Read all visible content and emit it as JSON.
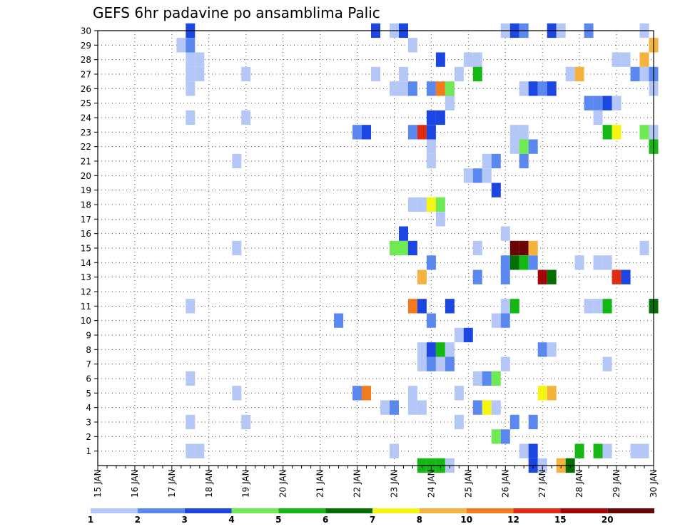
{
  "chart_data": {
    "type": "heatmap",
    "title": "GEFS 6hr padavine po ansamblima Palic",
    "x_tick_labels": [
      "15 JAN",
      "16 JAN",
      "17 JAN",
      "18 JAN",
      "19 JAN",
      "20 JAN",
      "21 JAN",
      "22 JAN",
      "23 JAN",
      "24 JAN",
      "25 JAN",
      "26 JAN",
      "27 JAN",
      "28 JAN",
      "29 JAN",
      "30 JAN"
    ],
    "y_tick_labels": [
      "1",
      "2",
      "3",
      "4",
      "5",
      "6",
      "7",
      "8",
      "9",
      "10",
      "11",
      "12",
      "13",
      "14",
      "15",
      "16",
      "17",
      "18",
      "19",
      "20",
      "21",
      "22",
      "23",
      "24",
      "25",
      "26",
      "27",
      "28",
      "29",
      "30"
    ],
    "x_range": [
      "15 JAN 00Z",
      "30 JAN 00Z"
    ],
    "time_step": "6hr",
    "y_range": [
      0,
      30
    ],
    "grid": "dotted",
    "legend": {
      "position": "bottom",
      "labels": [
        "1",
        "2",
        "3",
        "4",
        "5",
        "6",
        "7",
        "8",
        "10",
        "12",
        "15",
        "20"
      ],
      "colors": [
        "#b4c7f7",
        "#5b88ef",
        "#1c46e2",
        "#6fea55",
        "#14b814",
        "#036e03",
        "#f5f514",
        "#f5b33d",
        "#f47a1e",
        "#e02c14",
        "#a40404",
        "#6b0404"
      ]
    },
    "cells": [
      {
        "date": "17 JAN 12Z",
        "member": 30,
        "bin": 3
      },
      {
        "date": "17 JAN 06Z",
        "member": 29,
        "bin": 1
      },
      {
        "date": "17 JAN 12Z",
        "member": 29,
        "bin": 2
      },
      {
        "date": "17 JAN 12Z",
        "member": 28,
        "bin": 1
      },
      {
        "date": "17 JAN 18Z",
        "member": 28,
        "bin": 1
      },
      {
        "date": "17 JAN 12Z",
        "member": 27,
        "bin": 1
      },
      {
        "date": "17 JAN 18Z",
        "member": 27,
        "bin": 1
      },
      {
        "date": "17 JAN 12Z",
        "member": 26,
        "bin": 1
      },
      {
        "date": "17 JAN 12Z",
        "member": 24,
        "bin": 1
      },
      {
        "date": "17 JAN 12Z",
        "member": 11,
        "bin": 1
      },
      {
        "date": "17 JAN 12Z",
        "member": 6,
        "bin": 1
      },
      {
        "date": "17 JAN 12Z",
        "member": 3,
        "bin": 1
      },
      {
        "date": "17 JAN 12Z",
        "member": 1,
        "bin": 1
      },
      {
        "date": "17 JAN 18Z",
        "member": 1,
        "bin": 1
      },
      {
        "date": "19 JAN 00Z",
        "member": 27,
        "bin": 1
      },
      {
        "date": "19 JAN 00Z",
        "member": 24,
        "bin": 1
      },
      {
        "date": "19 JAN 00Z",
        "member": 3,
        "bin": 1
      },
      {
        "date": "18 JAN 18Z",
        "member": 21,
        "bin": 1
      },
      {
        "date": "18 JAN 18Z",
        "member": 15,
        "bin": 1
      },
      {
        "date": "18 JAN 18Z",
        "member": 5,
        "bin": 1
      },
      {
        "date": "21 JAN 12Z",
        "member": 10,
        "bin": 2
      },
      {
        "date": "22 JAN 00Z",
        "member": 23,
        "bin": 2
      },
      {
        "date": "22 JAN 06Z",
        "member": 23,
        "bin": 3
      },
      {
        "date": "22 JAN 00Z",
        "member": 5,
        "bin": 2
      },
      {
        "date": "22 JAN 06Z",
        "member": 5,
        "bin": 9
      },
      {
        "date": "22 JAN 12Z",
        "member": 27,
        "bin": 1
      },
      {
        "date": "22 JAN 18Z",
        "member": 4,
        "bin": 1
      },
      {
        "date": "23 JAN 00Z",
        "member": 4,
        "bin": 2
      },
      {
        "date": "22 JAN 12Z",
        "member": 30,
        "bin": 3
      },
      {
        "date": "23 JAN 00Z",
        "member": 30,
        "bin": 1
      },
      {
        "date": "23 JAN 06Z",
        "member": 30,
        "bin": 3
      },
      {
        "date": "23 JAN 00Z",
        "member": 26,
        "bin": 1
      },
      {
        "date": "23 JAN 06Z",
        "member": 26,
        "bin": 1
      },
      {
        "date": "23 JAN 12Z",
        "member": 26,
        "bin": 2
      },
      {
        "date": "23 JAN 06Z",
        "member": 27,
        "bin": 1
      },
      {
        "date": "23 JAN 12Z",
        "member": 29,
        "bin": 1
      },
      {
        "date": "23 JAN 00Z",
        "member": 15,
        "bin": 4
      },
      {
        "date": "23 JAN 06Z",
        "member": 15,
        "bin": 4
      },
      {
        "date": "23 JAN 06Z",
        "member": 16,
        "bin": 3
      },
      {
        "date": "23 JAN 12Z",
        "member": 15,
        "bin": 3
      },
      {
        "date": "23 JAN 12Z",
        "member": 11,
        "bin": 9
      },
      {
        "date": "23 JAN 18Z",
        "member": 11,
        "bin": 3
      },
      {
        "date": "23 JAN 00Z",
        "member": 1,
        "bin": 1
      },
      {
        "date": "23 JAN 12Z",
        "member": 23,
        "bin": 2
      },
      {
        "date": "23 JAN 18Z",
        "member": 23,
        "bin": 10
      },
      {
        "date": "24 JAN 00Z",
        "member": 23,
        "bin": 3
      },
      {
        "date": "24 JAN 00Z",
        "member": 24,
        "bin": 3
      },
      {
        "date": "24 JAN 06Z",
        "member": 24,
        "bin": 3
      },
      {
        "date": "24 JAN 00Z",
        "member": 22,
        "bin": 1
      },
      {
        "date": "24 JAN 00Z",
        "member": 21,
        "bin": 1
      },
      {
        "date": "23 JAN 12Z",
        "member": 18,
        "bin": 1
      },
      {
        "date": "23 JAN 18Z",
        "member": 18,
        "bin": 1
      },
      {
        "date": "24 JAN 00Z",
        "member": 18,
        "bin": 7
      },
      {
        "date": "24 JAN 06Z",
        "member": 18,
        "bin": 4
      },
      {
        "date": "23 JAN 18Z",
        "member": 13,
        "bin": 8
      },
      {
        "date": "24 JAN 00Z",
        "member": 14,
        "bin": 2
      },
      {
        "date": "24 JAN 00Z",
        "member": 10,
        "bin": 2
      },
      {
        "date": "23 JAN 18Z",
        "member": 8,
        "bin": 1
      },
      {
        "date": "24 JAN 00Z",
        "member": 8,
        "bin": 3
      },
      {
        "date": "24 JAN 06Z",
        "member": 8,
        "bin": 5
      },
      {
        "date": "24 JAN 12Z",
        "member": 8,
        "bin": 1
      },
      {
        "date": "23 JAN 18Z",
        "member": 7,
        "bin": 1
      },
      {
        "date": "24 JAN 00Z",
        "member": 7,
        "bin": 2
      },
      {
        "date": "24 JAN 06Z",
        "member": 7,
        "bin": 1
      },
      {
        "date": "24 JAN 12Z",
        "member": 7,
        "bin": 2
      },
      {
        "date": "24 JAN 18Z",
        "member": 9,
        "bin": 1
      },
      {
        "date": "25 JAN 00Z",
        "member": 9,
        "bin": 3
      },
      {
        "date": "23 JAN 12Z",
        "member": 4,
        "bin": 1
      },
      {
        "date": "23 JAN 18Z",
        "member": 4,
        "bin": 1
      },
      {
        "date": "23 JAN 12Z",
        "member": 5,
        "bin": 1
      },
      {
        "date": "23 JAN 18Z",
        "member": 0,
        "bin": 5
      },
      {
        "date": "24 JAN 00Z",
        "member": 0,
        "bin": 5
      },
      {
        "date": "24 JAN 06Z",
        "member": 0,
        "bin": 5
      },
      {
        "date": "24 JAN 12Z",
        "member": 0,
        "bin": 1
      },
      {
        "date": "24 JAN 06Z",
        "member": 28,
        "bin": 3
      },
      {
        "date": "24 JAN 00Z",
        "member": 26,
        "bin": 2
      },
      {
        "date": "24 JAN 06Z",
        "member": 26,
        "bin": 9
      },
      {
        "date": "24 JAN 12Z",
        "member": 26,
        "bin": 4
      },
      {
        "date": "24 JAN 12Z",
        "member": 25,
        "bin": 1
      },
      {
        "date": "24 JAN 18Z",
        "member": 27,
        "bin": 1
      },
      {
        "date": "24 JAN 06Z",
        "member": 17,
        "bin": 1
      },
      {
        "date": "24 JAN 12Z",
        "member": 11,
        "bin": 3
      },
      {
        "date": "24 JAN 18Z",
        "member": 5,
        "bin": 1
      },
      {
        "date": "24 JAN 18Z",
        "member": 3,
        "bin": 1
      },
      {
        "date": "25 JAN 00Z",
        "member": 28,
        "bin": 1
      },
      {
        "date": "25 JAN 06Z",
        "member": 28,
        "bin": 1
      },
      {
        "date": "25 JAN 06Z",
        "member": 27,
        "bin": 5
      },
      {
        "date": "25 JAN 00Z",
        "member": 20,
        "bin": 1
      },
      {
        "date": "25 JAN 06Z",
        "member": 20,
        "bin": 2
      },
      {
        "date": "25 JAN 06Z",
        "member": 15,
        "bin": 1
      },
      {
        "date": "25 JAN 06Z",
        "member": 13,
        "bin": 2
      },
      {
        "date": "25 JAN 06Z",
        "member": 6,
        "bin": 1
      },
      {
        "date": "25 JAN 12Z",
        "member": 6,
        "bin": 2
      },
      {
        "date": "25 JAN 18Z",
        "member": 6,
        "bin": 4
      },
      {
        "date": "25 JAN 06Z",
        "member": 4,
        "bin": 2
      },
      {
        "date": "25 JAN 12Z",
        "member": 4,
        "bin": 7
      },
      {
        "date": "25 JAN 18Z",
        "member": 4,
        "bin": 1
      },
      {
        "date": "25 JAN 12Z",
        "member": 21,
        "bin": 1
      },
      {
        "date": "25 JAN 18Z",
        "member": 21,
        "bin": 2
      },
      {
        "date": "25 JAN 12Z",
        "member": 20,
        "bin": 1
      },
      {
        "date": "25 JAN 18Z",
        "member": 19,
        "bin": 3
      },
      {
        "date": "25 JAN 18Z",
        "member": 10,
        "bin": 1
      },
      {
        "date": "26 JAN 00Z",
        "member": 10,
        "bin": 2
      },
      {
        "date": "26 JAN 00Z",
        "member": 11,
        "bin": 1
      },
      {
        "date": "26 JAN 06Z",
        "member": 11,
        "bin": 5
      },
      {
        "date": "26 JAN 00Z",
        "member": 7,
        "bin": 1
      },
      {
        "date": "25 JAN 18Z",
        "member": 2,
        "bin": 4
      },
      {
        "date": "26 JAN 00Z",
        "member": 2,
        "bin": 2
      },
      {
        "date": "26 JAN 00Z",
        "member": 16,
        "bin": 1
      },
      {
        "date": "26 JAN 00Z",
        "member": 14,
        "bin": 2
      },
      {
        "date": "26 JAN 00Z",
        "member": 13,
        "bin": 2
      },
      {
        "date": "26 JAN 06Z",
        "member": 14,
        "bin": 6
      },
      {
        "date": "26 JAN 12Z",
        "member": 14,
        "bin": 5
      },
      {
        "date": "26 JAN 18Z",
        "member": 14,
        "bin": 2
      },
      {
        "date": "26 JAN 06Z",
        "member": 15,
        "bin": 12
      },
      {
        "date": "26 JAN 12Z",
        "member": 15,
        "bin": 12
      },
      {
        "date": "26 JAN 18Z",
        "member": 15,
        "bin": 8
      },
      {
        "date": "26 JAN 00Z",
        "member": 30,
        "bin": 1
      },
      {
        "date": "26 JAN 06Z",
        "member": 30,
        "bin": 3
      },
      {
        "date": "26 JAN 12Z",
        "member": 30,
        "bin": 2
      },
      {
        "date": "26 JAN 12Z",
        "member": 26,
        "bin": 1
      },
      {
        "date": "26 JAN 18Z",
        "member": 26,
        "bin": 3
      },
      {
        "date": "26 JAN 06Z",
        "member": 23,
        "bin": 1
      },
      {
        "date": "26 JAN 12Z",
        "member": 23,
        "bin": 1
      },
      {
        "date": "26 JAN 06Z",
        "member": 22,
        "bin": 1
      },
      {
        "date": "26 JAN 12Z",
        "member": 22,
        "bin": 4
      },
      {
        "date": "26 JAN 18Z",
        "member": 22,
        "bin": 2
      },
      {
        "date": "26 JAN 12Z",
        "member": 21,
        "bin": 2
      },
      {
        "date": "26 JAN 06Z",
        "member": 3,
        "bin": 2
      },
      {
        "date": "26 JAN 18Z",
        "member": 3,
        "bin": 2
      },
      {
        "date": "26 JAN 12Z",
        "member": 1,
        "bin": 1
      },
      {
        "date": "26 JAN 18Z",
        "member": 1,
        "bin": 3
      },
      {
        "date": "26 JAN 18Z",
        "member": 0,
        "bin": 3
      },
      {
        "date": "27 JAN 00Z",
        "member": 0,
        "bin": 1
      },
      {
        "date": "27 JAN 00Z",
        "member": 26,
        "bin": 2
      },
      {
        "date": "27 JAN 06Z",
        "member": 26,
        "bin": 3
      },
      {
        "date": "27 JAN 06Z",
        "member": 30,
        "bin": 3
      },
      {
        "date": "27 JAN 12Z",
        "member": 30,
        "bin": 1
      },
      {
        "date": "27 JAN 00Z",
        "member": 13,
        "bin": 11
      },
      {
        "date": "27 JAN 06Z",
        "member": 13,
        "bin": 6
      },
      {
        "date": "27 JAN 00Z",
        "member": 8,
        "bin": 2
      },
      {
        "date": "27 JAN 06Z",
        "member": 8,
        "bin": 1
      },
      {
        "date": "27 JAN 00Z",
        "member": 5,
        "bin": 7
      },
      {
        "date": "27 JAN 06Z",
        "member": 5,
        "bin": 8
      },
      {
        "date": "27 JAN 12Z",
        "member": 0,
        "bin": 8
      },
      {
        "date": "27 JAN 18Z",
        "member": 0,
        "bin": 6
      },
      {
        "date": "27 JAN 18Z",
        "member": 27,
        "bin": 1
      },
      {
        "date": "28 JAN 00Z",
        "member": 27,
        "bin": 8
      },
      {
        "date": "28 JAN 00Z",
        "member": 14,
        "bin": 1
      },
      {
        "date": "28 JAN 00Z",
        "member": 1,
        "bin": 5
      },
      {
        "date": "28 JAN 12Z",
        "member": 1,
        "bin": 5
      },
      {
        "date": "28 JAN 18Z",
        "member": 1,
        "bin": 1
      },
      {
        "date": "28 JAN 06Z",
        "member": 30,
        "bin": 2
      },
      {
        "date": "28 JAN 06Z",
        "member": 25,
        "bin": 2
      },
      {
        "date": "28 JAN 12Z",
        "member": 25,
        "bin": 2
      },
      {
        "date": "28 JAN 18Z",
        "member": 25,
        "bin": 3
      },
      {
        "date": "29 JAN 00Z",
        "member": 25,
        "bin": 1
      },
      {
        "date": "28 JAN 12Z",
        "member": 24,
        "bin": 1
      },
      {
        "date": "28 JAN 18Z",
        "member": 23,
        "bin": 5
      },
      {
        "date": "29 JAN 00Z",
        "member": 23,
        "bin": 7
      },
      {
        "date": "28 JAN 12Z",
        "member": 14,
        "bin": 1
      },
      {
        "date": "28 JAN 18Z",
        "member": 14,
        "bin": 1
      },
      {
        "date": "28 JAN 06Z",
        "member": 11,
        "bin": 1
      },
      {
        "date": "28 JAN 12Z",
        "member": 11,
        "bin": 1
      },
      {
        "date": "28 JAN 18Z",
        "member": 11,
        "bin": 5
      },
      {
        "date": "28 JAN 18Z",
        "member": 7,
        "bin": 1
      },
      {
        "date": "29 JAN 00Z",
        "member": 13,
        "bin": 10
      },
      {
        "date": "29 JAN 06Z",
        "member": 13,
        "bin": 3
      },
      {
        "date": "29 JAN 00Z",
        "member": 28,
        "bin": 1
      },
      {
        "date": "29 JAN 06Z",
        "member": 28,
        "bin": 1
      },
      {
        "date": "29 JAN 12Z",
        "member": 27,
        "bin": 2
      },
      {
        "date": "29 JAN 18Z",
        "member": 27,
        "bin": 1
      },
      {
        "date": "29 JAN 18Z",
        "member": 30,
        "bin": 1
      },
      {
        "date": "29 JAN 18Z",
        "member": 28,
        "bin": 8
      },
      {
        "date": "29 JAN 18Z",
        "member": 23,
        "bin": 4
      },
      {
        "date": "29 JAN 18Z",
        "member": 15,
        "bin": 1
      },
      {
        "date": "29 JAN 18Z",
        "member": 1,
        "bin": 1
      },
      {
        "date": "29 JAN 12Z",
        "member": 1,
        "bin": 1
      },
      {
        "date": "30 JAN 00Z",
        "member": 29,
        "bin": 8
      },
      {
        "date": "30 JAN 00Z",
        "member": 27,
        "bin": 2
      },
      {
        "date": "30 JAN 00Z",
        "member": 26,
        "bin": 1
      },
      {
        "date": "30 JAN 00Z",
        "member": 23,
        "bin": 1
      },
      {
        "date": "30 JAN 00Z",
        "member": 22,
        "bin": 5
      },
      {
        "date": "30 JAN 00Z",
        "member": 11,
        "bin": 6
      }
    ]
  }
}
